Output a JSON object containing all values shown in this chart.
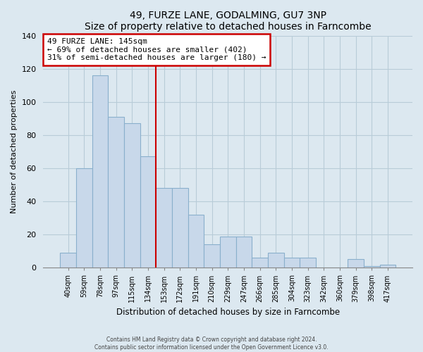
{
  "title": "49, FURZE LANE, GODALMING, GU7 3NP",
  "subtitle": "Size of property relative to detached houses in Farncombe",
  "xlabel": "Distribution of detached houses by size in Farncombe",
  "ylabel": "Number of detached properties",
  "bar_labels": [
    "40sqm",
    "59sqm",
    "78sqm",
    "97sqm",
    "115sqm",
    "134sqm",
    "153sqm",
    "172sqm",
    "191sqm",
    "210sqm",
    "229sqm",
    "247sqm",
    "266sqm",
    "285sqm",
    "304sqm",
    "323sqm",
    "342sqm",
    "360sqm",
    "379sqm",
    "398sqm",
    "417sqm"
  ],
  "bar_values": [
    9,
    60,
    116,
    91,
    87,
    67,
    48,
    48,
    32,
    14,
    19,
    19,
    6,
    9,
    6,
    6,
    0,
    0,
    5,
    1,
    2
  ],
  "bar_color": "#c8d8ea",
  "bar_edge_color": "#8ab0cc",
  "highlight_color": "#cc0000",
  "annotation_line1": "49 FURZE LANE: 145sqm",
  "annotation_line2": "← 69% of detached houses are smaller (402)",
  "annotation_line3": "31% of semi-detached houses are larger (180) →",
  "annotation_box_color": "#ffffff",
  "annotation_border_color": "#cc0000",
  "ylim": [
    0,
    140
  ],
  "yticks": [
    0,
    20,
    40,
    60,
    80,
    100,
    120,
    140
  ],
  "footer_line1": "Contains HM Land Registry data © Crown copyright and database right 2024.",
  "footer_line2": "Contains public sector information licensed under the Open Government Licence v3.0.",
  "background_color": "#dce8f0",
  "plot_background_color": "#dce8f0",
  "grid_color": "#b8ccd8"
}
